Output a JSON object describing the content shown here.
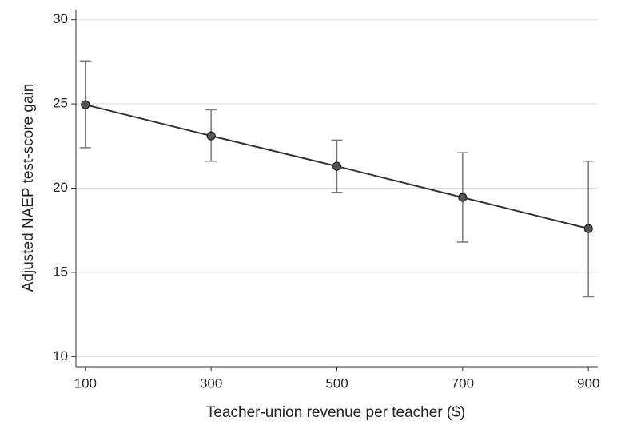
{
  "chart_data": {
    "type": "line",
    "x_label": "Teacher-union revenue per teacher ($)",
    "y_label": "Adjusted NAEP test-score gain",
    "x": [
      100,
      300,
      500,
      700,
      900
    ],
    "series": [
      {
        "color": "#333333",
        "values": [
          24.95,
          23.1,
          21.3,
          19.45,
          17.6
        ],
        "ci_low": [
          22.4,
          21.6,
          19.75,
          16.8,
          13.55
        ],
        "ci_high": [
          27.55,
          24.65,
          22.85,
          22.1,
          21.6
        ]
      }
    ],
    "xlim": [
      85,
      915
    ],
    "xticks": [
      100,
      300,
      500,
      700,
      900
    ],
    "ylim": [
      9.4,
      30.6
    ],
    "yticks": [
      10,
      15,
      20,
      25,
      30
    ],
    "grid": true
  }
}
